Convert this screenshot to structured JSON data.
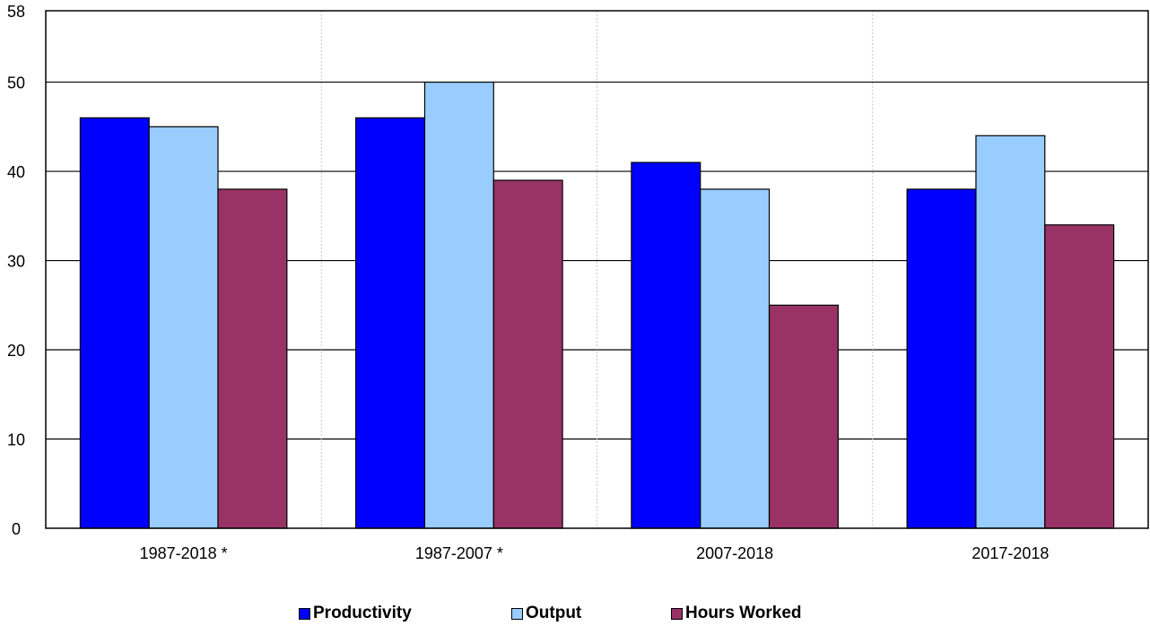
{
  "chart_data": {
    "type": "bar",
    "categories": [
      "1987-2018 *",
      "1987-2007 *",
      "2007-2018",
      "2017-2018"
    ],
    "series": [
      {
        "name": "Productivity",
        "values": [
          46,
          46,
          41,
          38
        ],
        "color": "#0000ff"
      },
      {
        "name": "Output",
        "values": [
          45,
          50,
          38,
          44
        ],
        "color": "#99ccff"
      },
      {
        "name": "Hours Worked",
        "values": [
          38,
          39,
          25,
          34
        ],
        "color": "#993366"
      }
    ],
    "yticks": [
      0,
      10,
      20,
      30,
      40,
      50,
      58
    ],
    "ylim": [
      0,
      58
    ],
    "title": "",
    "xlabel": "",
    "ylabel": "",
    "grid": true,
    "legend_position": "bottom"
  }
}
